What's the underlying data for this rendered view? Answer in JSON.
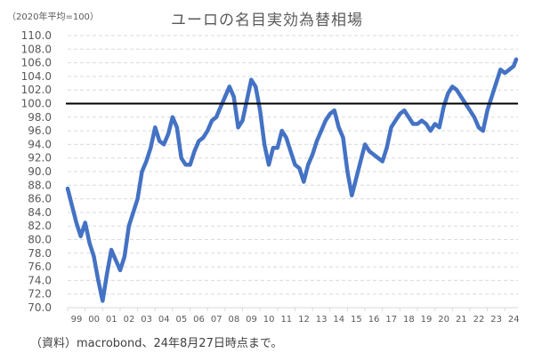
{
  "header": {
    "title": "ユーロの名目実効為替相場",
    "unit_note": "（2020年平均=100）"
  },
  "footer": {
    "source": "（資料）macrobond、24年8月27日時点まで。"
  },
  "colors": {
    "series": "#4472C4",
    "reference_line": "#000000",
    "grid": "#D9D9D9",
    "axis": "#D9D9D9",
    "text": "#595959"
  },
  "chart_data": {
    "type": "line",
    "title": "ユーロの名目実効為替相場",
    "subtitle": "（2020年平均=100）",
    "xlabel": "",
    "ylabel": "",
    "ylim": [
      70.0,
      110.0
    ],
    "yticks": [
      "70.0",
      "72.0",
      "74.0",
      "76.0",
      "78.0",
      "80.0",
      "82.0",
      "84.0",
      "86.0",
      "88.0",
      "90.0",
      "92.0",
      "94.0",
      "96.0",
      "98.0",
      "100.0",
      "102.0",
      "104.0",
      "106.0",
      "108.0",
      "110.0"
    ],
    "xticks": [
      "99",
      "00",
      "01",
      "02",
      "03",
      "04",
      "05",
      "06",
      "07",
      "08",
      "09",
      "10",
      "11",
      "12",
      "13",
      "14",
      "15",
      "16",
      "17",
      "18",
      "19",
      "20",
      "21",
      "22",
      "23",
      "24"
    ],
    "grid": true,
    "grid_style": "dashed horizontal",
    "reference_line": {
      "y": 100.0,
      "label": "2020年平均=100"
    },
    "legend": null,
    "annotations": [],
    "series": [
      {
        "name": "ユーロの名目実効為替相場",
        "x": [
          1999.0,
          1999.25,
          1999.5,
          1999.75,
          2000.0,
          2000.25,
          2000.5,
          2000.75,
          2001.0,
          2001.25,
          2001.5,
          2001.75,
          2002.0,
          2002.25,
          2002.5,
          2002.75,
          2003.0,
          2003.25,
          2003.5,
          2003.75,
          2004.0,
          2004.25,
          2004.5,
          2004.75,
          2005.0,
          2005.25,
          2005.5,
          2005.75,
          2006.0,
          2006.25,
          2006.5,
          2006.75,
          2007.0,
          2007.25,
          2007.5,
          2007.75,
          2008.0,
          2008.25,
          2008.5,
          2008.75,
          2009.0,
          2009.25,
          2009.5,
          2009.75,
          2010.0,
          2010.25,
          2010.5,
          2010.75,
          2011.0,
          2011.25,
          2011.5,
          2011.75,
          2012.0,
          2012.25,
          2012.5,
          2012.75,
          2013.0,
          2013.25,
          2013.5,
          2013.75,
          2014.0,
          2014.25,
          2014.5,
          2014.75,
          2015.0,
          2015.25,
          2015.5,
          2015.75,
          2016.0,
          2016.25,
          2016.5,
          2016.75,
          2017.0,
          2017.25,
          2017.5,
          2017.75,
          2018.0,
          2018.25,
          2018.5,
          2018.75,
          2019.0,
          2019.25,
          2019.5,
          2019.75,
          2020.0,
          2020.25,
          2020.5,
          2020.75,
          2021.0,
          2021.25,
          2021.5,
          2021.75,
          2022.0,
          2022.25,
          2022.5,
          2022.75,
          2023.0,
          2023.25,
          2023.5,
          2023.75,
          2024.0,
          2024.25,
          2024.5,
          2024.65
        ],
        "values": [
          87.5,
          85.0,
          82.5,
          80.5,
          82.5,
          79.5,
          77.5,
          74.0,
          71.0,
          75.0,
          78.5,
          77.0,
          75.5,
          77.5,
          82.0,
          84.0,
          86.0,
          90.0,
          91.5,
          93.5,
          96.5,
          94.5,
          94.0,
          95.5,
          98.0,
          96.5,
          92.0,
          91.0,
          91.0,
          93.0,
          94.5,
          95.0,
          96.0,
          97.5,
          98.0,
          99.5,
          101.0,
          102.5,
          101.0,
          96.5,
          97.5,
          100.5,
          103.5,
          102.5,
          99.0,
          94.0,
          91.0,
          93.5,
          93.5,
          96.0,
          95.0,
          93.0,
          91.0,
          90.5,
          88.5,
          91.0,
          92.5,
          94.5,
          96.0,
          97.5,
          98.5,
          99.0,
          96.5,
          95.0,
          90.0,
          86.5,
          89.0,
          91.5,
          94.0,
          93.0,
          92.5,
          92.0,
          91.5,
          93.5,
          96.5,
          97.5,
          98.5,
          99.0,
          98.0,
          97.0,
          97.0,
          97.5,
          97.0,
          96.0,
          97.0,
          96.5,
          99.5,
          101.5,
          102.5,
          102.0,
          101.0,
          100.0,
          99.0,
          98.0,
          96.5,
          96.0,
          99.0,
          101.0,
          103.0,
          105.0,
          104.5,
          105.0,
          105.5,
          106.5
        ]
      }
    ]
  }
}
